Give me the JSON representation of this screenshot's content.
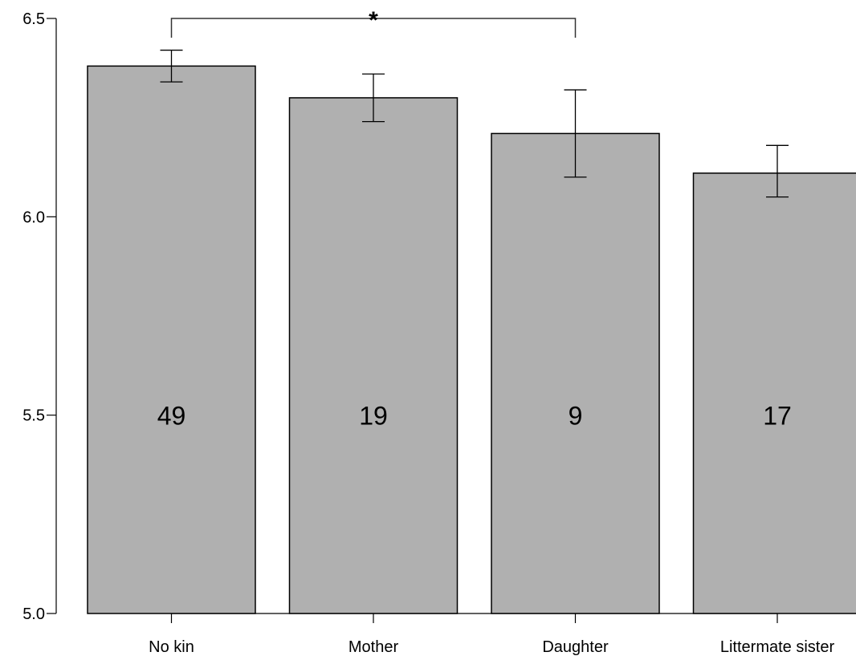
{
  "chart_data": {
    "type": "bar",
    "title": "",
    "xlabel": "",
    "ylabel": "",
    "categories": [
      "No kin",
      "Mother",
      "Daughter",
      "Littermate sister"
    ],
    "values": [
      6.38,
      6.3,
      6.21,
      6.11
    ],
    "error_low": [
      6.34,
      6.24,
      6.1,
      6.05
    ],
    "error_high": [
      6.42,
      6.36,
      6.32,
      6.18
    ],
    "counts": [
      "49",
      "19",
      "9",
      "17"
    ],
    "ylim": [
      5.0,
      6.5
    ],
    "yticks": [
      5.0,
      5.5,
      6.0,
      6.5
    ],
    "ytick_labels": [
      "5.0",
      "5.5",
      "6.0",
      "6.5"
    ],
    "grid": false,
    "legend": "none",
    "bar_color": "#b0b0b0",
    "significance": {
      "from": "No kin",
      "to": "Daughter",
      "label": "*"
    }
  }
}
